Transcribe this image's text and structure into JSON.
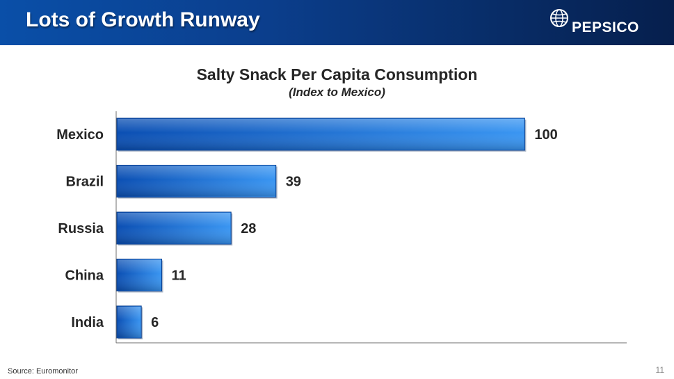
{
  "slide": {
    "title": "Lots of Growth Runway",
    "brand": "PEPSICO",
    "source": "Source: Euromonitor",
    "page_number": "11"
  },
  "colors": {
    "header": "#0b3e8c",
    "bar_light": "#3a95f0",
    "bar_dark": "#0a4fb4",
    "text": "#262626"
  },
  "chart_data": {
    "type": "bar",
    "orientation": "horizontal",
    "title": "Salty Snack Per Capita Consumption",
    "subtitle": "(Index to Mexico)",
    "categories": [
      "Mexico",
      "Brazil",
      "Russia",
      "China",
      "India"
    ],
    "values": [
      100,
      39,
      28,
      11,
      6
    ],
    "xlim": [
      0,
      125
    ],
    "grid": false,
    "data_labels": true
  }
}
